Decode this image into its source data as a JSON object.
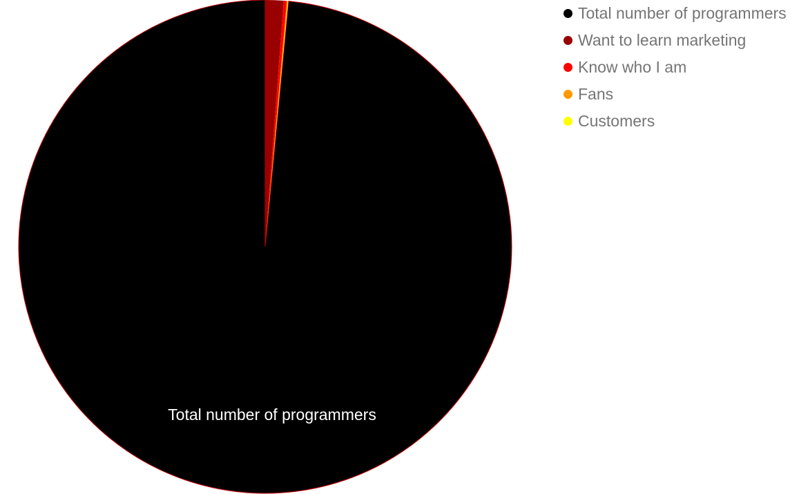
{
  "chart_data": {
    "type": "pie",
    "title": "",
    "legend_position": "right",
    "slices": [
      {
        "label": "Total number of programmers",
        "value": 98.5,
        "color": "#000000"
      },
      {
        "label": "Want to learn marketing",
        "value": 1.2,
        "color": "#990000"
      },
      {
        "label": "Know who I am",
        "value": 0.2,
        "color": "#ff0000"
      },
      {
        "label": "Fans",
        "value": 0.07,
        "color": "#ff9900"
      },
      {
        "label": "Customers",
        "value": 0.03,
        "color": "#ffff00"
      }
    ],
    "slice_label": "Total number of programmers",
    "slice_border_color": "#cc0000"
  }
}
